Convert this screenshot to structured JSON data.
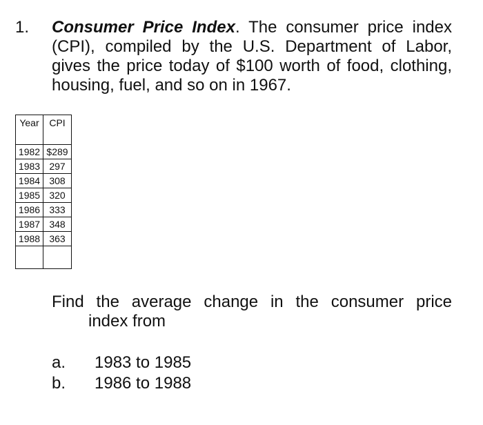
{
  "problem": {
    "number": "1.",
    "title": "Consumer Price Index",
    "body": ". The consumer price index (CPI), compiled by the U.S. Department of Labor, gives the price today of $100 worth of food, clothing, housing, fuel, and so on in 1967."
  },
  "table": {
    "headers": [
      "Year",
      "CPI"
    ],
    "rows": [
      [
        "1982",
        "$289"
      ],
      [
        "1983",
        "297"
      ],
      [
        "1984",
        "308"
      ],
      [
        "1985",
        "320"
      ],
      [
        "1986",
        "333"
      ],
      [
        "1987",
        "348"
      ],
      [
        "1988",
        "363"
      ]
    ]
  },
  "question": {
    "line1": "Find the average change in the consumer price",
    "line2": "index from"
  },
  "parts": [
    {
      "letter": "a.",
      "text": "1983 to 1985"
    },
    {
      "letter": "b.",
      "text": "1986 to 1988"
    }
  ]
}
